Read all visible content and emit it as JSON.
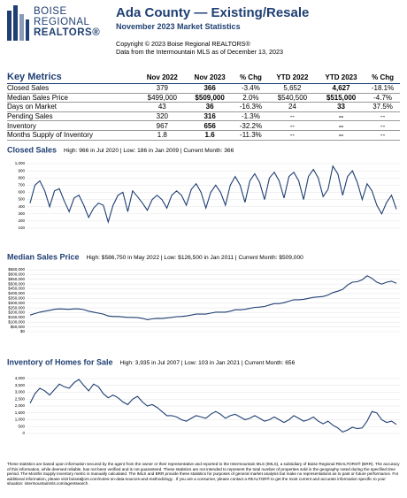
{
  "header": {
    "logo": [
      "BOISE",
      "REGIONAL",
      "REALTORS®"
    ],
    "title": "Ada County — Existing/Resale",
    "subtitle": "November 2023 Market Statistics",
    "copyright": [
      "Copyright © 2023 Boise Regional REALTORS®",
      "Data from the Intermountain MLS as of December 13, 2023"
    ]
  },
  "table": {
    "header": [
      "Key Metrics",
      "Nov 2022",
      "Nov 2023",
      "% Chg",
      "YTD 2022",
      "YTD 2023",
      "% Chg"
    ],
    "rows": [
      [
        "Closed Sales",
        "379",
        "366",
        "-3.4%",
        "5,652",
        "4,627",
        "-18.1%"
      ],
      [
        "Median Sales Price",
        "$499,000",
        "$509,000",
        "2.0%",
        "$540,500",
        "$515,000",
        "-4.7%"
      ],
      [
        "Days on Market",
        "43",
        "36",
        "-16.3%",
        "24",
        "33",
        "37.5%"
      ],
      [
        "Pending Sales",
        "320",
        "316",
        "-1.3%",
        "--",
        "--",
        "--"
      ],
      [
        "Inventory",
        "967",
        "656",
        "-32.2%",
        "--",
        "--",
        "--"
      ],
      [
        "Months Supply of Inventory",
        "1.8",
        "1.6",
        "-11.3%",
        "--",
        "--",
        "--"
      ]
    ]
  },
  "chart_data": [
    {
      "type": "line",
      "title": "Closed Sales",
      "subtitle": "High: 966 in Jul 2020 | Low: 186 in Jan 2009 | Current Month: 366",
      "color": "#1f3f73",
      "ylim": [
        100,
        1000
      ],
      "yticks": [
        100,
        200,
        300,
        400,
        500,
        600,
        700,
        800,
        900,
        {
          "value": 1000,
          "label": "1,000"
        }
      ],
      "values": [
        450,
        700,
        760,
        620,
        400,
        620,
        650,
        480,
        330,
        520,
        560,
        420,
        250,
        380,
        450,
        420,
        186,
        420,
        560,
        600,
        330,
        620,
        540,
        450,
        350,
        500,
        560,
        500,
        380,
        560,
        620,
        560,
        420,
        640,
        720,
        600,
        380,
        600,
        700,
        600,
        420,
        700,
        820,
        700,
        460,
        760,
        860,
        740,
        500,
        800,
        880,
        760,
        520,
        820,
        880,
        760,
        500,
        820,
        920,
        800,
        540,
        640,
        966,
        860,
        560,
        820,
        900,
        740,
        500,
        720,
        620,
        420,
        300,
        460,
        560,
        366
      ]
    },
    {
      "type": "line",
      "title": "Median Sales Price",
      "subtitle": "High: $586,750 in May 2022 | Low: $126,500 in Jan 2011 | Current Month: $509,000",
      "color": "#1f3f73",
      "ylim": [
        0,
        650000
      ],
      "yticks": [
        {
          "value": 0,
          "label": "$0"
        },
        {
          "value": 50000,
          "label": "$50,000"
        },
        {
          "value": 100000,
          "label": "$100,000"
        },
        {
          "value": 150000,
          "label": "$150,000"
        },
        {
          "value": 200000,
          "label": "$200,000"
        },
        {
          "value": 250000,
          "label": "$250,000"
        },
        {
          "value": 300000,
          "label": "$300,000"
        },
        {
          "value": 350000,
          "label": "$350,000"
        },
        {
          "value": 400000,
          "label": "$400,000"
        },
        {
          "value": 450000,
          "label": "$450,000"
        },
        {
          "value": 500000,
          "label": "$500,000"
        },
        {
          "value": 550000,
          "label": "$550,000"
        },
        {
          "value": 600000,
          "label": "$600,000"
        },
        {
          "value": 650000,
          "label": "$650,000"
        }
      ],
      "values": [
        175000,
        190000,
        205000,
        215000,
        225000,
        235000,
        240000,
        238000,
        235000,
        240000,
        240000,
        232000,
        215000,
        205000,
        195000,
        185000,
        165000,
        160000,
        160000,
        155000,
        150000,
        150000,
        148000,
        140000,
        126500,
        135000,
        140000,
        138000,
        145000,
        150000,
        158000,
        160000,
        165000,
        175000,
        185000,
        185000,
        185000,
        195000,
        205000,
        205000,
        205000,
        215000,
        230000,
        230000,
        235000,
        245000,
        255000,
        258000,
        265000,
        280000,
        295000,
        295000,
        305000,
        320000,
        335000,
        335000,
        340000,
        350000,
        360000,
        365000,
        370000,
        385000,
        410000,
        425000,
        445000,
        490000,
        520000,
        525000,
        545000,
        586750,
        560000,
        520000,
        500000,
        520000,
        530000,
        509000
      ]
    },
    {
      "type": "line",
      "title": "Inventory of Homes for Sale",
      "subtitle": "High: 3,935 in Jul 2007 | Low: 103 in Jan 2021 | Current Month: 656",
      "color": "#1f3f73",
      "ylim": [
        0,
        4000
      ],
      "yticks": [
        0,
        500,
        {
          "value": 1000,
          "label": "1,000"
        },
        {
          "value": 1500,
          "label": "1,500"
        },
        {
          "value": 2000,
          "label": "2,000"
        },
        {
          "value": 2500,
          "label": "2,500"
        },
        {
          "value": 3000,
          "label": "3,000"
        },
        {
          "value": 3500,
          "label": "3,500"
        },
        {
          "value": 4000,
          "label": "4,000"
        }
      ],
      "values": [
        2200,
        2900,
        3300,
        3100,
        2800,
        3200,
        3600,
        3400,
        3300,
        3700,
        3935,
        3500,
        3100,
        3600,
        3400,
        2900,
        2600,
        2800,
        2600,
        2300,
        2100,
        2500,
        2700,
        2300,
        2000,
        2100,
        1900,
        1600,
        1300,
        1300,
        1200,
        1000,
        900,
        1100,
        1300,
        1200,
        1100,
        1400,
        1600,
        1400,
        1100,
        1300,
        1400,
        1200,
        1000,
        1100,
        1300,
        1100,
        900,
        1000,
        1200,
        1000,
        800,
        1000,
        1300,
        1100,
        900,
        1000,
        1200,
        900,
        700,
        900,
        600,
        400,
        103,
        250,
        450,
        350,
        400,
        900,
        1600,
        1500,
        1000,
        800,
        900,
        656
      ]
    }
  ],
  "footer": "These statistics are based upon information secured by the agent from the owner or their representative and reported to the Intermountain MLS (IMLS), a subsidiary of Boise Regional REALTORS® (BRR). The accuracy of this information, while deemed reliable, has not been verified and is not guaranteed. These statistics are not intended to represent the total number of properties sold in the geography noted during the specified time period. The Months Supply Inventory metric is manually calculated. The IMLS and BRR provide these statistics for purposes of general market analysis but make no representations as to past or future performance. For additional information, please visit boiseaٍltors.com/notes-on-data-sources-and-methodology . If you are a consumer, please contact a REALTOR® to get the most current and accurate information specific to your situation: intermountainmls.com/agentsearch ."
}
